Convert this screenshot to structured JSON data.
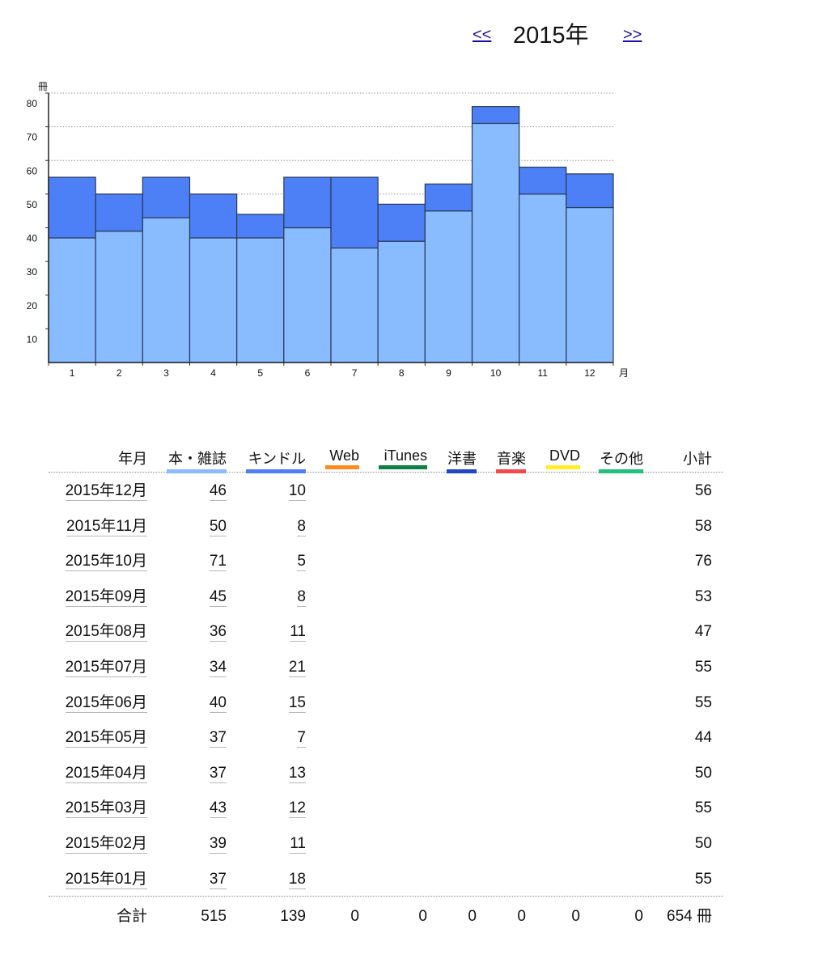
{
  "nav": {
    "prev": "<<",
    "next": ">>",
    "year_title": "2015年"
  },
  "chart_data": {
    "type": "bar",
    "stacked": true,
    "categories": [
      "1",
      "2",
      "3",
      "4",
      "5",
      "6",
      "7",
      "8",
      "9",
      "10",
      "11",
      "12"
    ],
    "series": [
      {
        "name": "本・雑誌",
        "values": [
          37,
          39,
          43,
          37,
          37,
          40,
          34,
          36,
          45,
          71,
          50,
          46
        ],
        "color": "#88bbff"
      },
      {
        "name": "キンドル",
        "values": [
          18,
          11,
          12,
          13,
          7,
          15,
          21,
          11,
          8,
          5,
          8,
          10
        ],
        "color": "#4d80f6"
      }
    ],
    "ylabel": "冊",
    "xlabel": "月",
    "yticks": [
      10,
      20,
      30,
      40,
      50,
      60,
      70,
      80
    ],
    "ylim": [
      0,
      80
    ],
    "grid": true
  },
  "table": {
    "headers": [
      {
        "label": "年月",
        "color": ""
      },
      {
        "label": "本・雑誌",
        "color": "#88bbff"
      },
      {
        "label": "キンドル",
        "color": "#4d80f6"
      },
      {
        "label": "Web",
        "color": "#ff8a1c"
      },
      {
        "label": "iTunes",
        "color": "#0b8040"
      },
      {
        "label": "洋書",
        "color": "#1f48c4"
      },
      {
        "label": "音楽",
        "color": "#f24a4a"
      },
      {
        "label": "DVD",
        "color": "#ffee22"
      },
      {
        "label": "その他",
        "color": "#22c07a"
      },
      {
        "label": "小計",
        "color": ""
      }
    ],
    "rows": [
      {
        "month": "2015年12月",
        "book": "46",
        "kindle": "10",
        "subtotal": "56"
      },
      {
        "month": "2015年11月",
        "book": "50",
        "kindle": "8",
        "subtotal": "58"
      },
      {
        "month": "2015年10月",
        "book": "71",
        "kindle": "5",
        "subtotal": "76"
      },
      {
        "month": "2015年09月",
        "book": "45",
        "kindle": "8",
        "subtotal": "53"
      },
      {
        "month": "2015年08月",
        "book": "36",
        "kindle": "11",
        "subtotal": "47"
      },
      {
        "month": "2015年07月",
        "book": "34",
        "kindle": "21",
        "subtotal": "55"
      },
      {
        "month": "2015年06月",
        "book": "40",
        "kindle": "15",
        "subtotal": "55"
      },
      {
        "month": "2015年05月",
        "book": "37",
        "kindle": "7",
        "subtotal": "44"
      },
      {
        "month": "2015年04月",
        "book": "37",
        "kindle": "13",
        "subtotal": "50"
      },
      {
        "month": "2015年03月",
        "book": "43",
        "kindle": "12",
        "subtotal": "55"
      },
      {
        "month": "2015年02月",
        "book": "39",
        "kindle": "11",
        "subtotal": "50"
      },
      {
        "month": "2015年01月",
        "book": "37",
        "kindle": "18",
        "subtotal": "55"
      }
    ],
    "totals": {
      "label": "合計",
      "book": "515",
      "kindle": "139",
      "web": "0",
      "itunes": "0",
      "yosho": "0",
      "music": "0",
      "dvd": "0",
      "other": "0",
      "grand": "654 冊"
    }
  }
}
